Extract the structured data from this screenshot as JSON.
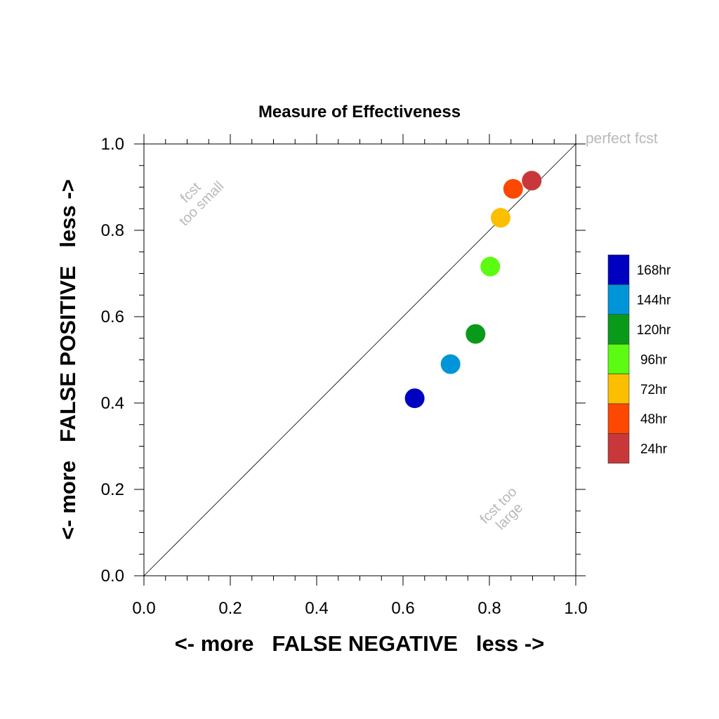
{
  "chart_data": {
    "type": "scatter",
    "title": "Measure of Effectiveness",
    "xlabel": "<- more   FALSE NEGATIVE   less ->",
    "ylabel": "<- more   FALSE POSITIVE   less ->",
    "xlim": [
      0.0,
      1.0
    ],
    "ylim": [
      0.0,
      1.0
    ],
    "x_ticks": [
      "0.0",
      "0.2",
      "0.4",
      "0.6",
      "0.8",
      "1.0"
    ],
    "y_ticks": [
      "0.0",
      "0.2",
      "0.4",
      "0.6",
      "0.8",
      "1.0"
    ],
    "grid": false,
    "legend_placement": "right",
    "reference_line": {
      "from": [
        0,
        0
      ],
      "to": [
        1,
        1
      ],
      "label": "perfect fcst"
    },
    "annotations": {
      "upper_left": [
        "fcst",
        "too small"
      ],
      "lower_right": [
        "fcst too",
        "large"
      ]
    },
    "series": [
      {
        "name": "168hr",
        "color": "#0000c0",
        "x": 0.627,
        "y": 0.411
      },
      {
        "name": "144hr",
        "color": "#0095d8",
        "x": 0.71,
        "y": 0.49
      },
      {
        "name": "120hr",
        "color": "#0a9a1a",
        "x": 0.768,
        "y": 0.56
      },
      {
        "name": "96hr",
        "color": "#5cfc12",
        "x": 0.802,
        "y": 0.716
      },
      {
        "name": "72hr",
        "color": "#fcbf00",
        "x": 0.826,
        "y": 0.829
      },
      {
        "name": "48hr",
        "color": "#fc4800",
        "x": 0.855,
        "y": 0.896
      },
      {
        "name": "24hr",
        "color": "#c8383a",
        "x": 0.898,
        "y": 0.915
      }
    ]
  }
}
